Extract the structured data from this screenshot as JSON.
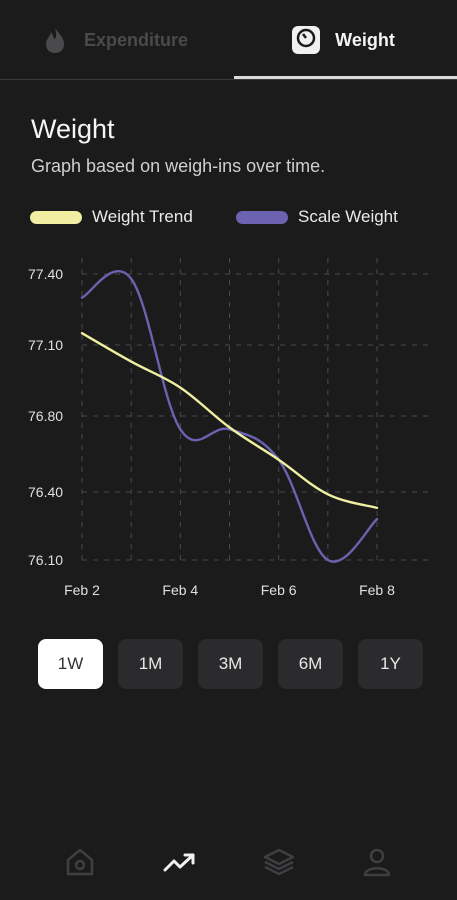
{
  "tabs": [
    {
      "label": "Expenditure",
      "icon": "flame-icon",
      "active": false
    },
    {
      "label": "Weight",
      "icon": "scale-icon",
      "active": true
    }
  ],
  "header": {
    "title": "Weight",
    "subtitle": "Graph based on weigh-ins over time."
  },
  "legend": [
    {
      "label": "Weight Trend",
      "color": "#f0eea0"
    },
    {
      "label": "Scale Weight",
      "color": "#6b62b0"
    }
  ],
  "chart_data": {
    "type": "line",
    "x": [
      "Feb 2",
      "Feb 3",
      "Feb 4",
      "Feb 5",
      "Feb 6",
      "Feb 7",
      "Feb 8"
    ],
    "xtick_labels": [
      "Feb 2",
      "Feb 4",
      "Feb 6",
      "Feb 8"
    ],
    "ytick_labels": [
      "77.40",
      "77.10",
      "76.80",
      "76.40",
      "76.10"
    ],
    "ylim": [
      76.1,
      77.4
    ],
    "grid": true,
    "legend_position": "top",
    "series": [
      {
        "name": "Weight Trend",
        "color": "#f0eea0",
        "values": [
          77.15,
          77.03,
          76.92,
          76.74,
          76.57,
          76.39,
          76.33
        ]
      },
      {
        "name": "Scale Weight",
        "color": "#6b62b0",
        "values": [
          77.3,
          77.38,
          76.73,
          76.73,
          76.57,
          76.1,
          76.28
        ]
      }
    ]
  },
  "ranges": [
    {
      "label": "1W",
      "active": true
    },
    {
      "label": "1M",
      "active": false
    },
    {
      "label": "3M",
      "active": false
    },
    {
      "label": "6M",
      "active": false
    },
    {
      "label": "1Y",
      "active": false
    }
  ],
  "nav": [
    {
      "icon": "home-icon",
      "active": false
    },
    {
      "icon": "trend-icon",
      "active": true
    },
    {
      "icon": "layers-icon",
      "active": false
    },
    {
      "icon": "profile-icon",
      "active": false
    }
  ]
}
